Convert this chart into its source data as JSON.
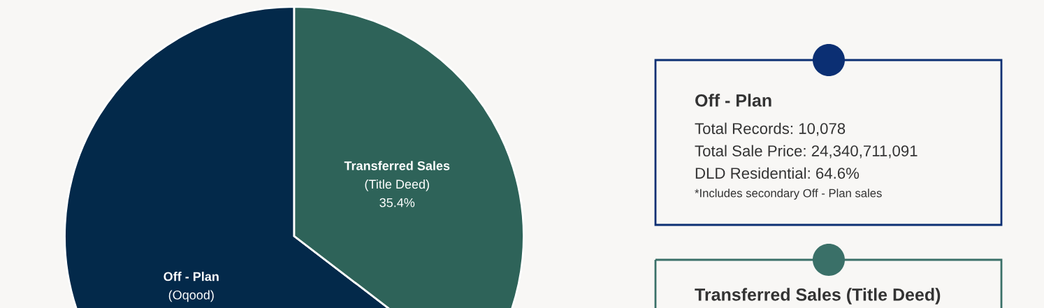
{
  "chart_data": [
    {
      "type": "pie",
      "categories": [
        "Off - Plan (Oqood)",
        "Transferred Sales (Title Deed)"
      ],
      "values": [
        64.6,
        35.4
      ],
      "colors": [
        "#03294a",
        "#2e6359"
      ],
      "value_labels": [
        null,
        "35.4%"
      ]
    },
    {
      "type": "other",
      "title": "Off - Plan",
      "color": "#0b2f73",
      "annotations": [
        "Total Records: 10,078",
        "Total Sale Price: 24,340,711,091",
        "DLD Residential: 64.6%",
        "*Includes secondary Off - Plan sales"
      ]
    },
    {
      "type": "other",
      "title": "Transferred Sales (Title Deed)",
      "color": "#3a7068"
    }
  ]
}
